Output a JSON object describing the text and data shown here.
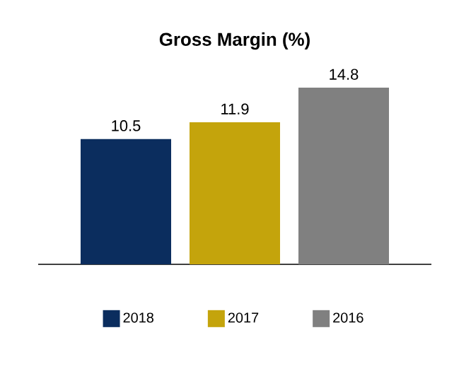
{
  "chart_data": {
    "type": "bar",
    "title": "Gross Margin (%)",
    "categories": [
      null
    ],
    "series": [
      {
        "name": "2018",
        "color": "#0b2d5e",
        "values": [
          10.5
        ]
      },
      {
        "name": "2017",
        "color": "#c4a40c",
        "values": [
          11.9
        ]
      },
      {
        "name": "2016",
        "color": "#808080",
        "values": [
          14.8
        ]
      }
    ],
    "data_labels": true,
    "legend": "bottom"
  }
}
